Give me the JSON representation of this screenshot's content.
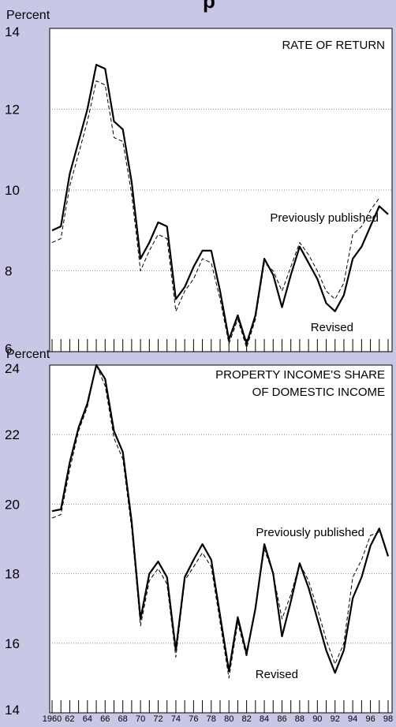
{
  "header_fragment": "p",
  "chart_data": [
    {
      "type": "line",
      "title": "RATE OF RETURN",
      "ylabel": "Percent",
      "ylim": [
        6,
        14
      ],
      "yticks": [
        6,
        8,
        10,
        12,
        14
      ],
      "grid": true,
      "x": [
        1960,
        1961,
        1962,
        1963,
        1964,
        1965,
        1966,
        1967,
        1968,
        1969,
        1970,
        1971,
        1972,
        1973,
        1974,
        1975,
        1976,
        1977,
        1978,
        1979,
        1980,
        1981,
        1982,
        1983,
        1984,
        1985,
        1986,
        1987,
        1988,
        1989,
        1990,
        1991,
        1992,
        1993,
        1994,
        1995,
        1996,
        1997,
        1998
      ],
      "series": [
        {
          "name": "Revised",
          "style": "solid",
          "color": "#000000",
          "values": [
            9.0,
            9.1,
            10.4,
            11.2,
            12.0,
            13.1,
            13.0,
            11.7,
            11.5,
            10.2,
            8.3,
            8.7,
            9.2,
            9.1,
            7.3,
            7.6,
            8.1,
            8.5,
            8.5,
            7.5,
            6.3,
            6.9,
            6.2,
            6.9,
            8.3,
            7.9,
            7.1,
            7.9,
            8.6,
            8.2,
            7.8,
            7.2,
            7.0,
            7.4,
            8.3,
            8.6,
            9.1,
            9.6,
            9.4
          ]
        },
        {
          "name": "Previously published",
          "style": "dashed",
          "color": "#000000",
          "values": [
            8.7,
            8.8,
            10.1,
            10.9,
            11.7,
            12.7,
            12.6,
            11.3,
            11.2,
            9.9,
            8.0,
            8.5,
            8.9,
            8.8,
            7.0,
            7.5,
            7.8,
            8.3,
            8.2,
            7.3,
            6.2,
            6.8,
            6.1,
            6.8,
            8.2,
            8.0,
            7.5,
            8.1,
            8.7,
            8.4,
            8.0,
            7.5,
            7.3,
            7.7,
            8.9,
            9.1,
            9.5,
            9.8,
            null
          ]
        }
      ],
      "annotations": [
        "Previously published",
        "Revised"
      ]
    },
    {
      "type": "line",
      "title": "PROPERTY INCOME'S SHARE",
      "title_line2": "OF DOMESTIC INCOME",
      "ylabel": "Percent",
      "ylim": [
        14,
        24
      ],
      "yticks": [
        14,
        16,
        18,
        20,
        22,
        24
      ],
      "grid": true,
      "x": [
        1960,
        1961,
        1962,
        1963,
        1964,
        1965,
        1966,
        1967,
        1968,
        1969,
        1970,
        1971,
        1972,
        1973,
        1974,
        1975,
        1976,
        1977,
        1978,
        1979,
        1980,
        1981,
        1982,
        1983,
        1984,
        1985,
        1986,
        1987,
        1988,
        1989,
        1990,
        1991,
        1992,
        1993,
        1994,
        1995,
        1996,
        1997,
        1998
      ],
      "xtick_labels": [
        "1960",
        "62",
        "64",
        "66",
        "68",
        "70",
        "72",
        "74",
        "76",
        "78",
        "80",
        "82",
        "84",
        "86",
        "88",
        "90",
        "92",
        "94",
        "96",
        "98"
      ],
      "series": [
        {
          "name": "Revised",
          "style": "solid",
          "color": "#000000",
          "values": [
            19.8,
            19.85,
            21.2,
            22.2,
            22.9,
            24.0,
            23.6,
            22.1,
            21.5,
            19.5,
            16.7,
            18.0,
            18.35,
            17.9,
            15.8,
            17.9,
            18.4,
            18.85,
            18.4,
            16.8,
            15.2,
            16.75,
            15.7,
            17.0,
            18.85,
            18.0,
            16.2,
            17.2,
            18.3,
            17.6,
            16.7,
            15.8,
            15.15,
            15.8,
            17.3,
            17.9,
            18.8,
            19.3,
            18.5
          ]
        },
        {
          "name": "Previously published",
          "style": "dashed",
          "color": "#000000",
          "values": [
            19.6,
            19.7,
            21.0,
            22.1,
            22.8,
            24.0,
            23.4,
            21.9,
            21.3,
            19.3,
            16.5,
            17.8,
            18.15,
            17.7,
            15.6,
            17.8,
            18.2,
            18.6,
            18.2,
            16.6,
            15.0,
            16.6,
            15.6,
            17.0,
            18.7,
            18.0,
            16.7,
            17.4,
            18.3,
            17.8,
            17.0,
            16.1,
            15.4,
            16.0,
            17.9,
            18.4,
            19.1,
            19.2,
            null
          ]
        }
      ],
      "annotations": [
        "Previously published",
        "Revised"
      ]
    }
  ]
}
